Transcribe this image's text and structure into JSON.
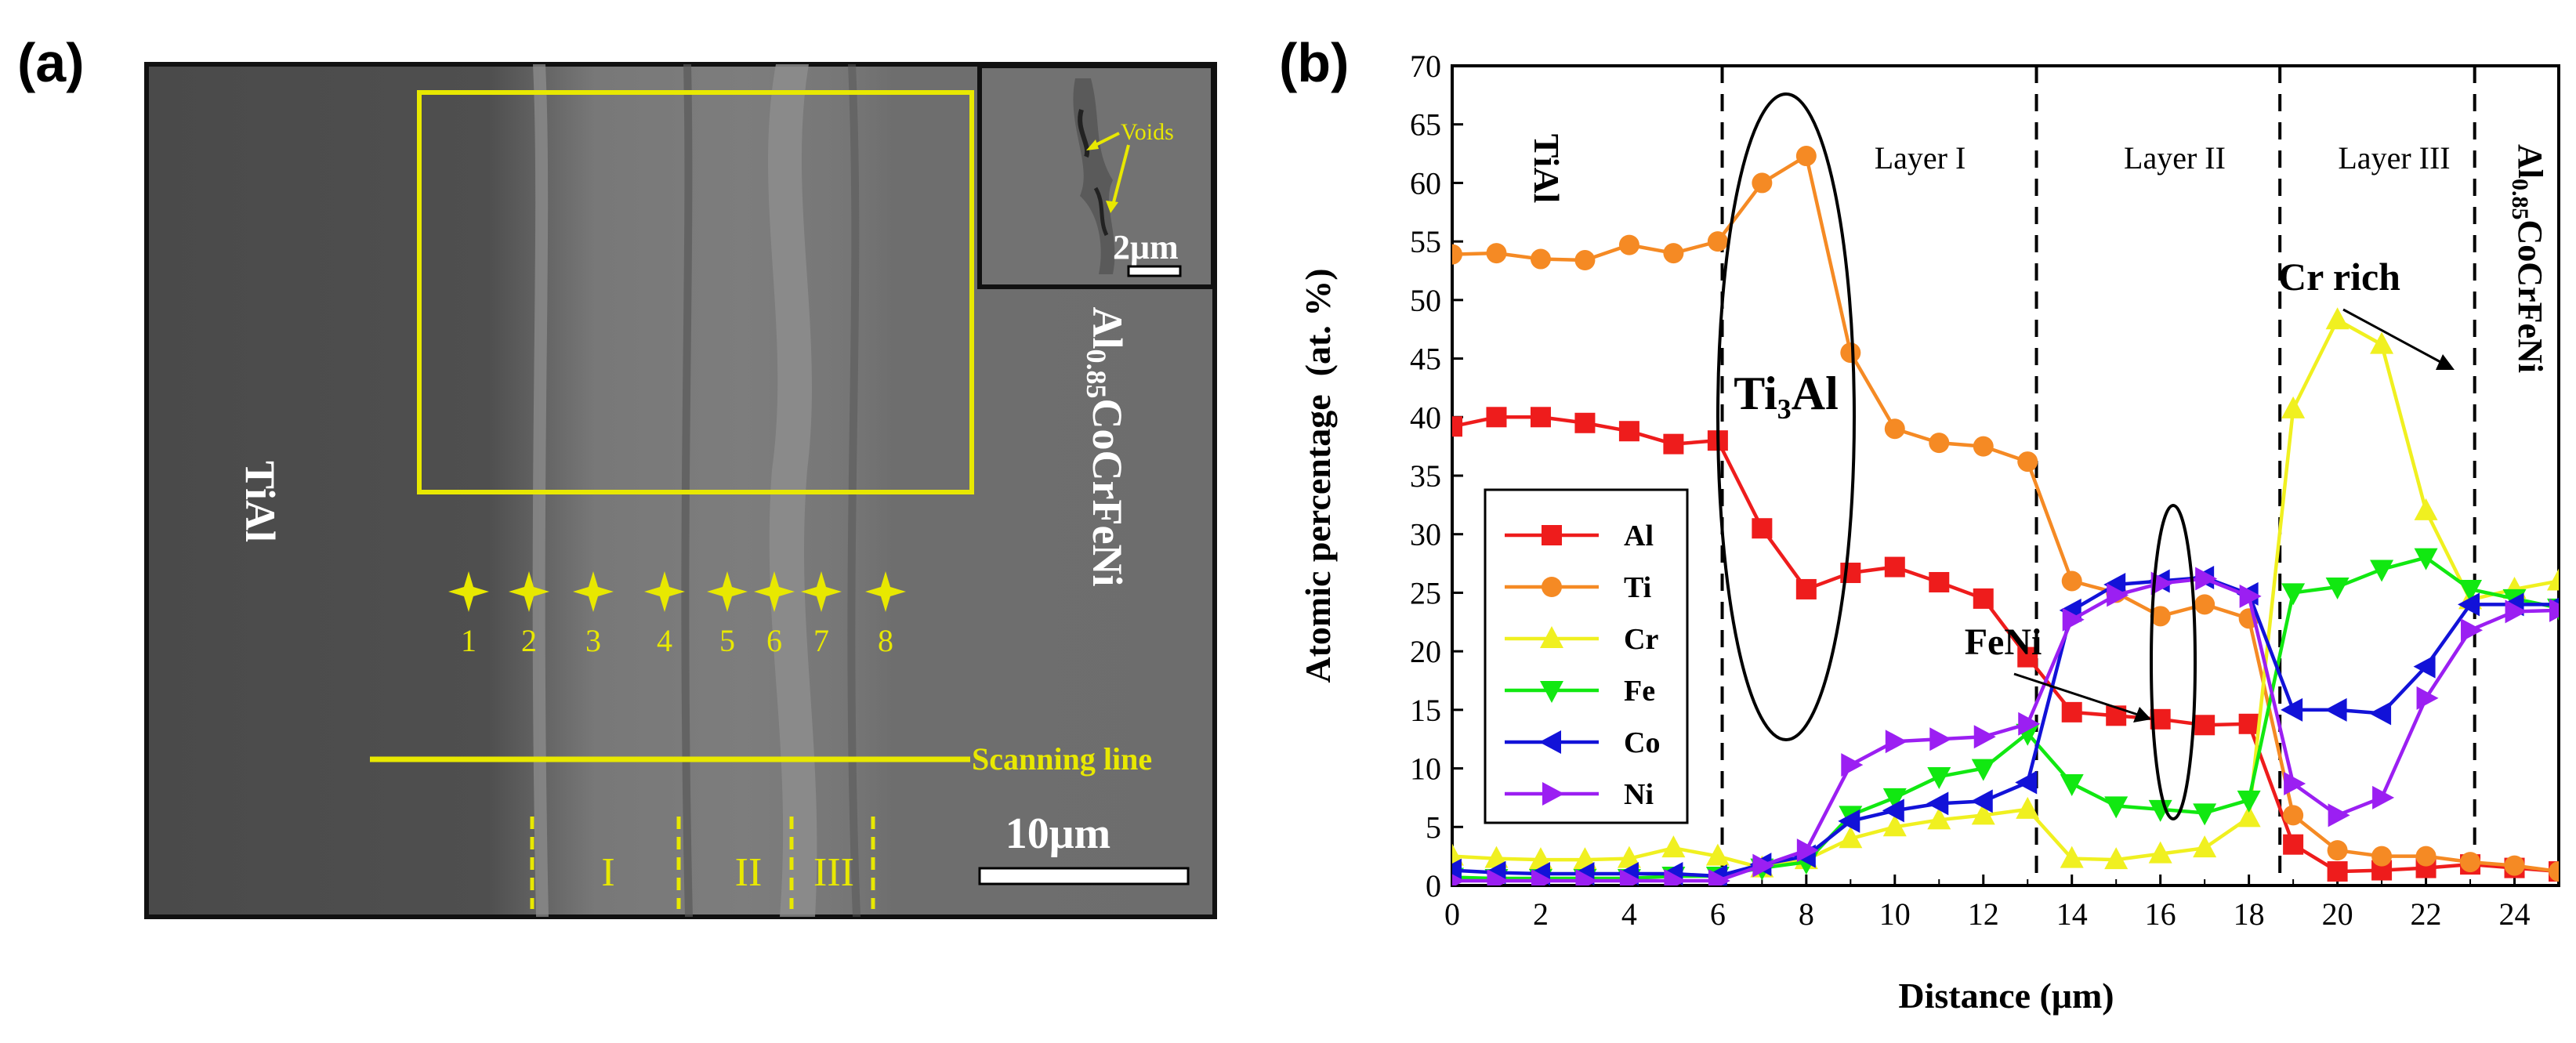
{
  "panel_a": {
    "label": "(a)",
    "inset": {
      "label": "Voids",
      "scale_bar": "2μm"
    },
    "tial_label": "TiAl",
    "alloy_label": {
      "base": "Al",
      "sub": "0.85",
      "rest": "CoCrFeNi"
    },
    "points": [
      "1",
      "2",
      "3",
      "4",
      "5",
      "6",
      "7",
      "8"
    ],
    "scanning_line_label": "Scanning line",
    "zones": [
      "I",
      "II",
      "III"
    ],
    "scale_bar": "10μm",
    "colors": {
      "annotation": "#e8e800",
      "background": "#5e5e5e"
    }
  },
  "panel_b": {
    "label": "(b)",
    "region_labels": {
      "tial": "TiAl",
      "layer1": "Layer I",
      "layer2": "Layer II",
      "layer3": "Layer III",
      "alloy": {
        "base": "Al",
        "sub": "0.85",
        "rest": "CoCrFeNi"
      }
    },
    "annotations": {
      "ti3al": "Ti₃Al",
      "feni": "FeNi",
      "cr_rich": "Cr rich"
    }
  },
  "chart_data": {
    "type": "line",
    "title": "",
    "xlabel": "Distance (μm)",
    "ylabel": "Atomic percentage  (at. %)",
    "xlim": [
      0,
      25
    ],
    "ylim": [
      0,
      70
    ],
    "xticks": [
      0,
      2,
      4,
      6,
      8,
      10,
      12,
      14,
      16,
      18,
      20,
      22,
      24
    ],
    "yticks": [
      0,
      5,
      10,
      15,
      20,
      25,
      30,
      35,
      40,
      45,
      50,
      55,
      60,
      65,
      70
    ],
    "boundaries": [
      6.1,
      13.2,
      18.7,
      23.1
    ],
    "legend_position": "lower-left",
    "x": [
      0,
      1,
      2,
      3,
      4,
      5,
      6,
      7,
      8,
      9,
      10,
      11,
      12,
      13,
      14,
      15,
      16,
      17,
      18,
      19,
      20,
      21,
      22,
      23,
      24,
      25
    ],
    "series": [
      {
        "name": "Al",
        "color": "#ee1c1c",
        "marker": "square",
        "values": [
          39.2,
          40,
          40,
          39.5,
          38.8,
          37.7,
          38,
          30.5,
          25.3,
          26.7,
          27.2,
          25.9,
          24.5,
          19.5,
          14.8,
          14.5,
          14.2,
          13.7,
          13.8,
          3.5,
          1.2,
          1.3,
          1.5,
          1.8,
          1.5,
          1.2
        ]
      },
      {
        "name": "Ti",
        "color": "#f58a24",
        "marker": "circle",
        "values": [
          53.9,
          54,
          53.5,
          53.4,
          54.7,
          54,
          55,
          60,
          62.3,
          45.5,
          39,
          37.8,
          37.5,
          36.2,
          26,
          25,
          23,
          24,
          22.8,
          6,
          3,
          2.5,
          2.5,
          2,
          1.7,
          1.2
        ]
      },
      {
        "name": "Cr",
        "color": "#f0f020",
        "marker": "triangle-up",
        "values": [
          2.5,
          2.3,
          2.2,
          2.2,
          2.3,
          3.2,
          2.5,
          1.5,
          2.2,
          4,
          5,
          5.6,
          6,
          6.5,
          2.3,
          2.2,
          2.7,
          3.2,
          5.8,
          40.7,
          48.3,
          46.2,
          32,
          24.4,
          25.3,
          26
        ]
      },
      {
        "name": "Fe",
        "color": "#11e811",
        "marker": "triangle-down",
        "values": [
          0.7,
          0.6,
          0.6,
          0.6,
          0.6,
          0.8,
          0.8,
          1.5,
          2,
          6,
          7.5,
          9.3,
          10,
          13,
          8.7,
          6.8,
          6.5,
          6.2,
          7.3,
          25,
          25.5,
          27,
          28,
          25.3,
          24.5,
          23.7
        ]
      },
      {
        "name": "Co",
        "color": "#1212d8",
        "marker": "triangle-left",
        "values": [
          1.3,
          1.1,
          1,
          1,
          1,
          1,
          0.8,
          1.8,
          2.5,
          5.5,
          6.4,
          7,
          7.2,
          8.8,
          23.5,
          25.7,
          26,
          26.3,
          24.9,
          15,
          15,
          14.7,
          18.7,
          24,
          24,
          24
        ]
      },
      {
        "name": "Ni",
        "color": "#9b1ff2",
        "marker": "triangle-right",
        "values": [
          0.4,
          0.4,
          0.4,
          0.4,
          0.4,
          0.4,
          0.4,
          1.7,
          3,
          10.3,
          12.3,
          12.5,
          12.7,
          13.8,
          22.7,
          24.8,
          25.8,
          26.2,
          24.7,
          8.7,
          6,
          7.5,
          16,
          21.8,
          23.4,
          23.5
        ]
      }
    ]
  }
}
